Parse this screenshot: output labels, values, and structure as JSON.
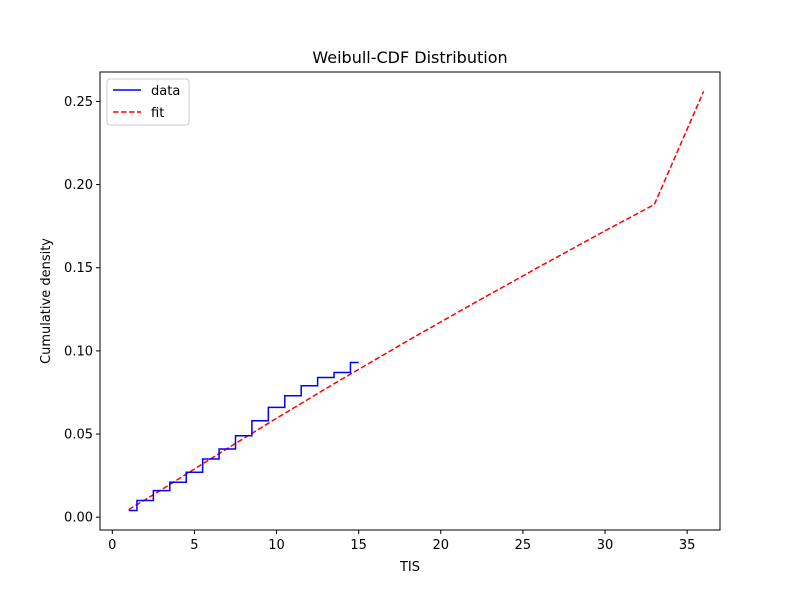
{
  "chart_data": {
    "type": "line",
    "title": "Weibull-CDF Distribution",
    "xlabel": "TIS",
    "ylabel": "Cumulative density",
    "xlim": [
      -0.75,
      37.0
    ],
    "ylim": [
      -0.0077,
      0.2677
    ],
    "xticks": [
      0,
      5,
      10,
      15,
      20,
      25,
      30,
      35
    ],
    "yticks": [
      0.0,
      0.05,
      0.1,
      0.15,
      0.2,
      0.25
    ],
    "xtick_labels": [
      "0",
      "5",
      "10",
      "15",
      "20",
      "25",
      "30",
      "35"
    ],
    "ytick_labels": [
      "0.00",
      "0.05",
      "0.10",
      "0.15",
      "0.20",
      "0.25"
    ],
    "legend_position": "top-left",
    "series": [
      {
        "name": "data",
        "style": "step-post",
        "color": "#0000ff",
        "x": [
          1,
          1.5,
          2.5,
          3.5,
          4.5,
          5.5,
          6.5,
          7.5,
          8.5,
          9.5,
          10.5,
          11.5,
          12.5,
          13.5,
          14.5,
          15
        ],
        "y": [
          0.004,
          0.01,
          0.016,
          0.021,
          0.027,
          0.035,
          0.041,
          0.049,
          0.058,
          0.066,
          0.073,
          0.079,
          0.084,
          0.087,
          0.093,
          0.093
        ]
      },
      {
        "name": "fit",
        "style": "dashed",
        "color": "#ff0000",
        "x": [
          1,
          2,
          3,
          5,
          7,
          10,
          13,
          15,
          18,
          22,
          26,
          30,
          33,
          36
        ],
        "y": [
          0.0046,
          0.0105,
          0.0166,
          0.029,
          0.0413,
          0.0595,
          0.0773,
          0.0889,
          0.1062,
          0.1286,
          0.1506,
          0.1722,
          0.188,
          0.256
        ]
      }
    ]
  }
}
